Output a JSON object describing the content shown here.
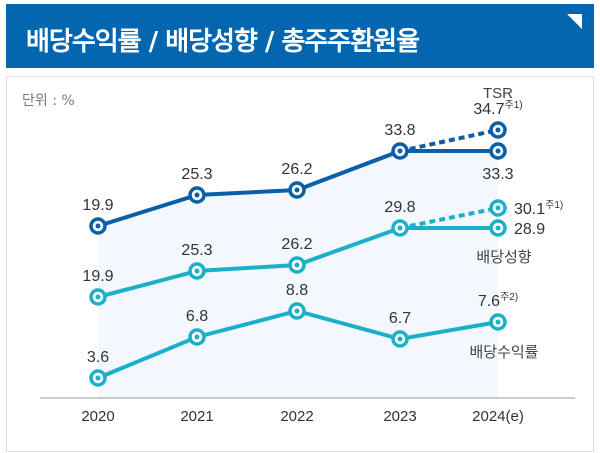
{
  "header": {
    "title": "배당수익률 / 배당성향 / 총주주환원율"
  },
  "unit_label": "단위 : %",
  "chart_data": {
    "type": "line",
    "categories": [
      "2020",
      "2021",
      "2022",
      "2023",
      "2024(e)"
    ],
    "series": [
      {
        "name": "TSR",
        "values": [
          19.9,
          25.3,
          26.2,
          33.8,
          33.3
        ],
        "projected": 34.7,
        "projected_note": "주1)",
        "color": "#0a5fa8"
      },
      {
        "name": "배당성향",
        "values": [
          19.9,
          25.3,
          26.2,
          29.8,
          28.9
        ],
        "projected": 30.1,
        "projected_note": "주1)",
        "color": "#1cb0c8"
      },
      {
        "name": "배당수익률",
        "values": [
          3.6,
          6.8,
          8.8,
          6.7,
          7.6
        ],
        "last_note": "주2)",
        "color": "#1cb0c8"
      }
    ],
    "grid": false
  }
}
